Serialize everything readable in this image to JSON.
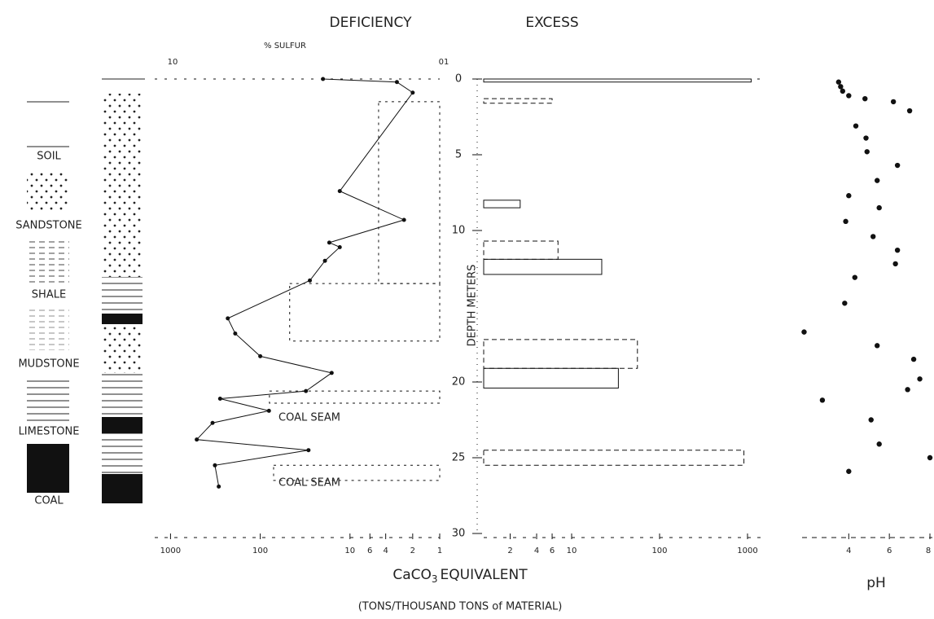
{
  "chart_data": {
    "type": "depth-profile",
    "deficiency_label": "DEFICIENCY",
    "excess_label": "EXCESS",
    "sulfur_label": "% SULFUR",
    "sulfur_ticks": [
      "10",
      "01"
    ],
    "ylabel": "DEPTH METERS",
    "ylim": [
      0,
      30
    ],
    "yticks": [
      0,
      5,
      10,
      20,
      25,
      30
    ],
    "xlabel_parts": [
      "CaCO",
      "3",
      "EQUIVALENT"
    ],
    "xunits": "(TONS/THOUSAND TONS of MATERIAL)",
    "log": true,
    "deficiency_xlim": [
      1500,
      1
    ],
    "deficiency_xticks": [
      1000,
      100,
      10,
      6,
      4,
      2,
      1
    ],
    "excess_xlim": [
      1,
      1500
    ],
    "excess_xticks": [
      2,
      4,
      6,
      10,
      100,
      1000
    ],
    "sulfur_profile": {
      "depth": [
        0,
        0.2,
        0.9,
        7.4,
        9.3,
        10.8,
        11.1,
        12,
        13.3,
        15.8,
        16.8,
        18.3,
        19.4,
        20.6,
        21.1,
        21.9,
        22.7,
        23.8,
        24.5,
        25.5,
        26.9
      ],
      "values": [
        20,
        3,
        2,
        13,
        2.5,
        17,
        13,
        19,
        28,
        230,
        190,
        100,
        16,
        31,
        280,
        80,
        340,
        510,
        29,
        320,
        290
      ]
    },
    "deficiency_intervals": {
      "top": [
        1.5,
        13.5,
        20.6,
        25.5
      ],
      "bottom": [
        13.5,
        17.3,
        21.4,
        26.5
      ],
      "values": [
        4.8,
        47,
        79,
        71
      ]
    },
    "excess_intervals": {
      "top": [
        0,
        1.3,
        8.0,
        10.7,
        11.9,
        17.2,
        19.1,
        24.5
      ],
      "bottom": [
        0.2,
        1.6,
        8.5,
        11.9,
        12.9,
        19.1,
        20.4,
        25.5
      ],
      "values": [
        1100,
        6,
        2.6,
        7,
        22,
        56,
        34,
        910
      ]
    },
    "annotations": [
      "COAL SEAM",
      "COAL SEAM"
    ],
    "lithology": [
      "SOIL",
      "SANDSTONE",
      "SHALE",
      "MUDSTONE",
      "LIMESTONE",
      "COAL"
    ],
    "ph": {
      "xlabel": "pH",
      "xlim": [
        1.5,
        8.2
      ],
      "xticks": [
        4,
        6,
        8
      ],
      "depth": [
        0.2,
        0.5,
        0.8,
        1.1,
        1.3,
        1.5,
        2.1,
        3.1,
        3.9,
        4.8,
        5.7,
        6.7,
        7.7,
        8.5,
        9.4,
        10.4,
        11.3,
        12.2,
        13.1,
        14.8,
        16.7,
        17.6,
        18.5,
        19.8,
        20.5,
        21.2,
        22.5,
        24.1,
        25.0,
        25.9
      ],
      "values": [
        3.5,
        3.6,
        3.7,
        4.0,
        4.8,
        6.2,
        7.0,
        4.35,
        4.85,
        4.9,
        6.4,
        5.4,
        4.0,
        5.5,
        3.85,
        5.2,
        6.4,
        6.3,
        4.3,
        3.8,
        1.8,
        5.4,
        7.2,
        7.5,
        6.9,
        2.7,
        5.1,
        5.5,
        8.0,
        4.0
      ]
    },
    "color": "#111"
  }
}
